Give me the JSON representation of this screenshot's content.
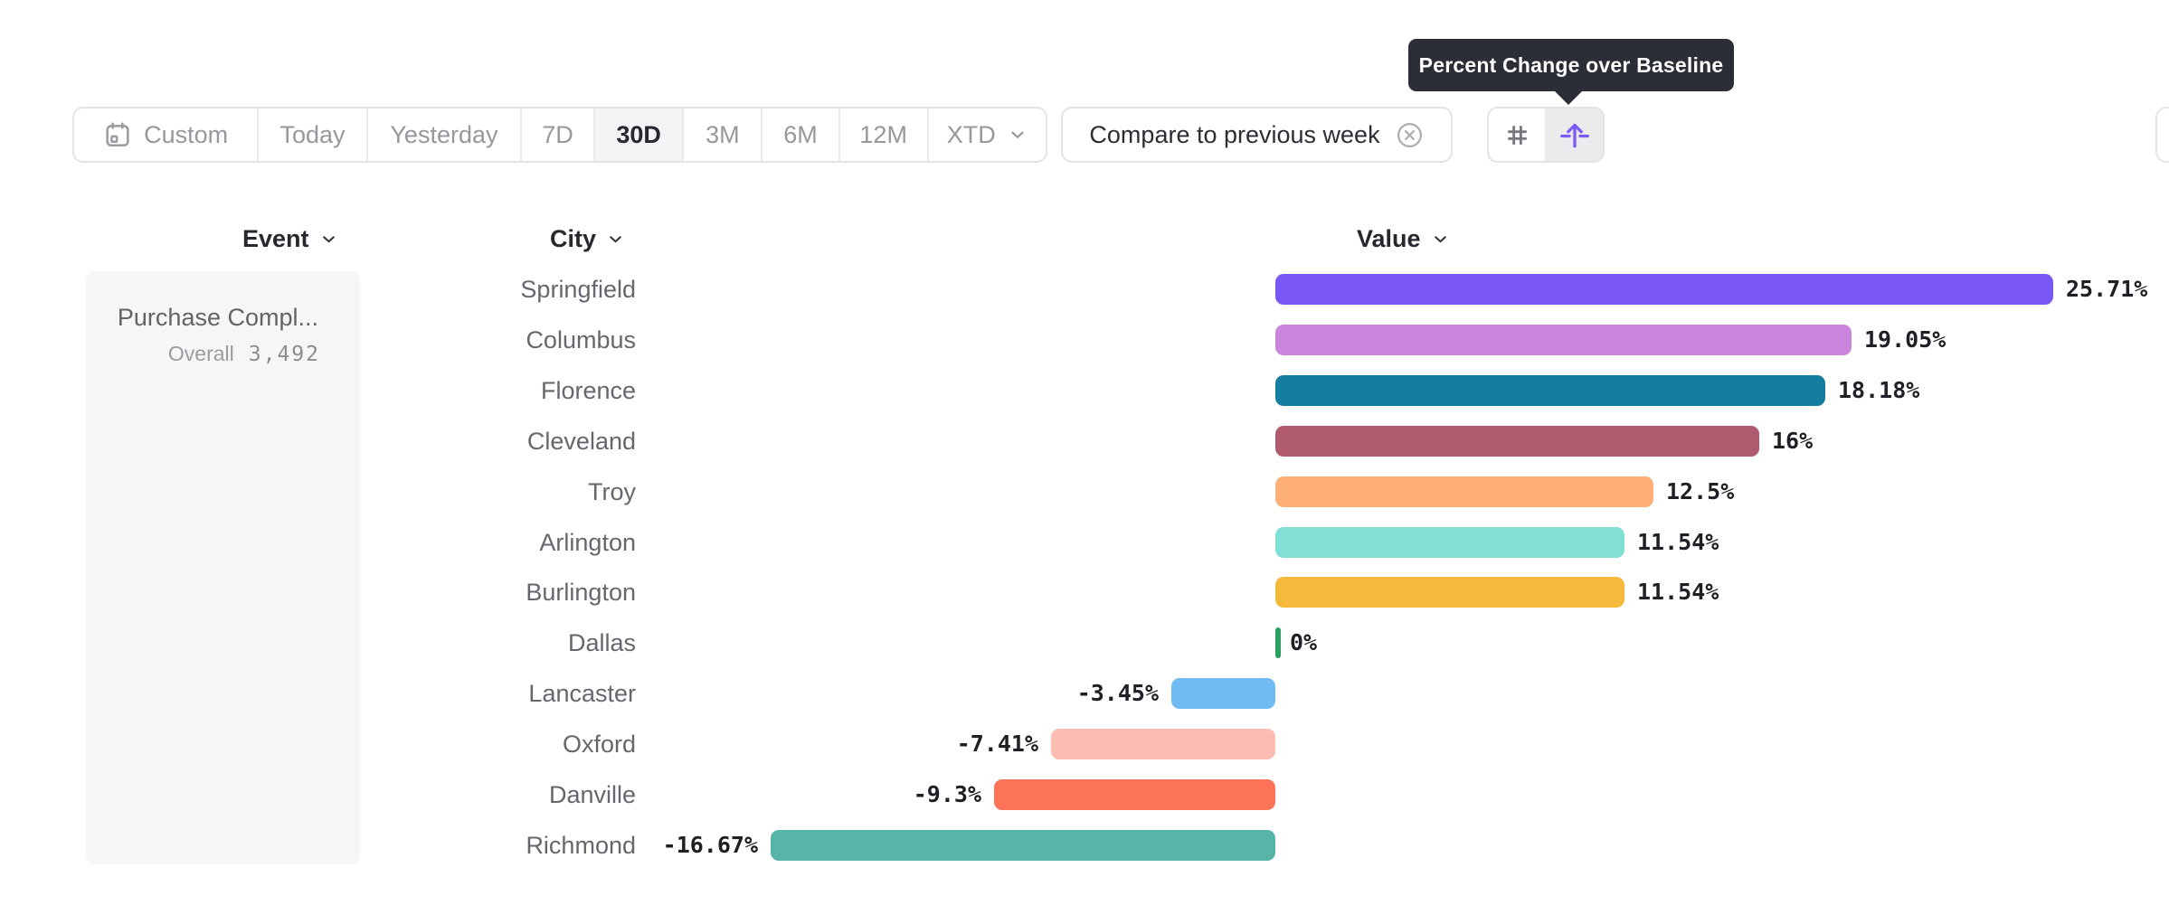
{
  "tooltip": {
    "text": "Percent Change over Baseline"
  },
  "toolbar": {
    "date_ranges": [
      {
        "label": "Custom",
        "calendar_icon": true,
        "selected": false
      },
      {
        "label": "Today",
        "selected": false
      },
      {
        "label": "Yesterday",
        "selected": false
      },
      {
        "label": "7D",
        "selected": false
      },
      {
        "label": "30D",
        "selected": true
      },
      {
        "label": "3M",
        "selected": false
      },
      {
        "label": "6M",
        "selected": false
      },
      {
        "label": "12M",
        "selected": false
      },
      {
        "label": "XTD",
        "chevron": true,
        "selected": false
      }
    ],
    "compare": {
      "label": "Compare to previous week",
      "remove_icon": "x-circle-icon"
    },
    "view_toggle": [
      {
        "icon": "grid-hash-icon",
        "selected": false
      },
      {
        "icon": "baseline-arrow-icon",
        "selected": true,
        "accent_color": "#7A5BF5"
      }
    ]
  },
  "columns": {
    "event": "Event",
    "city": "City",
    "value": "Value"
  },
  "event_card": {
    "name": "Purchase Compl...",
    "overall_label": "Overall",
    "overall_value": "3,492"
  },
  "chart_data": {
    "type": "bar",
    "orientation": "horizontal",
    "title": "Percent Change over Baseline",
    "unit": "%",
    "categories": [
      "Springfield",
      "Columbus",
      "Florence",
      "Cleveland",
      "Troy",
      "Arlington",
      "Burlington",
      "Dallas",
      "Lancaster",
      "Oxford",
      "Danville",
      "Richmond"
    ],
    "values": [
      25.71,
      19.05,
      18.18,
      16,
      12.5,
      11.54,
      11.54,
      0,
      -3.45,
      -7.41,
      -9.3,
      -16.67
    ],
    "value_labels": [
      "25.71%",
      "19.05%",
      "18.18%",
      "16%",
      "12.5%",
      "11.54%",
      "11.54%",
      "0%",
      "-3.45%",
      "-7.41%",
      "-9.3%",
      "-16.67%"
    ],
    "colors": [
      "#7957F5",
      "#C984DB",
      "#147DA0",
      "#AF5A6E",
      "#FFB077",
      "#81DFD6",
      "#F5BA3B",
      "#2CA05F",
      "#6FBBF2",
      "#FCBDB4",
      "#FC7357",
      "#57B4A9"
    ],
    "xlim": [
      -16.67,
      25.71
    ],
    "baseline": 0,
    "grid": false,
    "legend": false
  }
}
